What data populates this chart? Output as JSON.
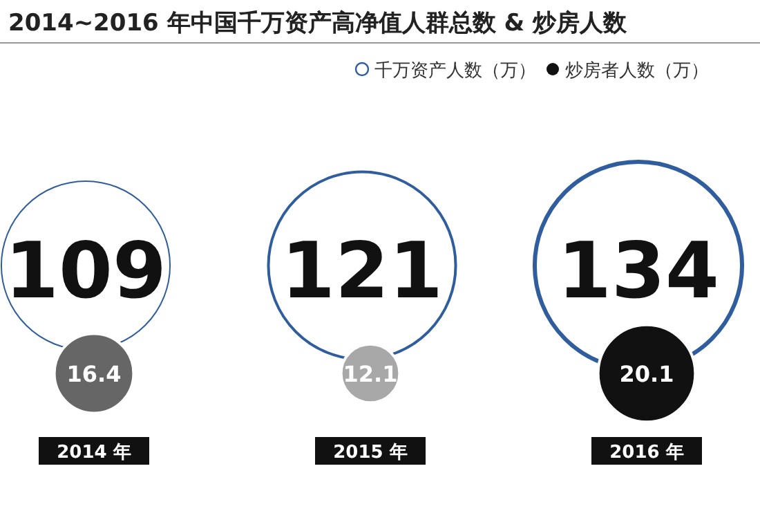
{
  "chart_data": {
    "type": "other",
    "title": "2014~2016 年中国千万资产高净值人群总数 & 炒房人数",
    "categories": [
      "2014 年",
      "2015 年",
      "2016 年"
    ],
    "series": [
      {
        "name": "千万资产人数（万）",
        "color": "#2f5d9e",
        "values": [
          109,
          121,
          134
        ]
      },
      {
        "name": "炒房者人数（万）",
        "colors": [
          "#666666",
          "#a8a8a8",
          "#111111"
        ],
        "values": [
          16.4,
          12.1,
          20.1
        ]
      }
    ],
    "data_labels": true,
    "legend": "top right"
  }
}
